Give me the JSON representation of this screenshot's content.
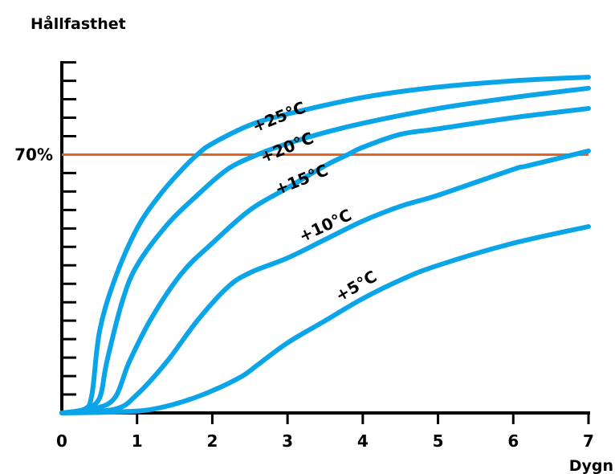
{
  "chart_data": {
    "type": "line",
    "title": "",
    "ylabel": "Hållfasthet",
    "xlabel": "Dygn",
    "x_ticks": [
      "0",
      "1",
      "2",
      "3",
      "4",
      "5",
      "6",
      "7"
    ],
    "xlim": [
      0,
      7
    ],
    "ylim": [
      0,
      100
    ],
    "grid": false,
    "reference_line": {
      "label": "70%",
      "y": 70,
      "color": "#e8641e"
    },
    "series_color": "#0aa5e8",
    "series": [
      {
        "name": "+25°C",
        "x": [
          0,
          0.3,
          0.4,
          0.5,
          0.7,
          1.0,
          1.3,
          1.6,
          1.8,
          2.0,
          2.5,
          3.0,
          4.0,
          5.0,
          6.0,
          7.0
        ],
        "y": [
          0,
          1,
          5,
          22,
          36,
          50,
          59,
          66,
          70,
          73,
          78,
          81,
          85.5,
          88.3,
          90,
          91
        ]
      },
      {
        "name": "+20°C",
        "x": [
          0,
          0.3,
          0.5,
          0.6,
          0.8,
          1.0,
          1.4,
          1.8,
          2.2,
          2.6,
          3.0,
          3.5,
          4.0,
          5.0,
          6.0,
          7.0
        ],
        "y": [
          0,
          1,
          4,
          14,
          30,
          40,
          51,
          59,
          66,
          70,
          73,
          76,
          78.5,
          82.5,
          85.5,
          88
        ]
      },
      {
        "name": "+15°C",
        "x": [
          0,
          0.4,
          0.7,
          0.9,
          1.2,
          1.6,
          2.0,
          2.5,
          3.0,
          3.5,
          3.8,
          4.0,
          4.5,
          5.0,
          6.0,
          7.0
        ],
        "y": [
          0,
          1,
          4,
          14,
          26,
          38,
          46,
          55,
          61,
          67,
          70,
          72,
          75.5,
          77,
          80,
          82.5
        ]
      },
      {
        "name": "+10°C",
        "x": [
          0,
          0.7,
          1.0,
          1.4,
          1.8,
          2.2,
          2.5,
          3.0,
          3.5,
          4.0,
          4.5,
          5.0,
          6.0,
          6.2,
          7.0
        ],
        "y": [
          0,
          1,
          5,
          14,
          25,
          34,
          38,
          42,
          47,
          52,
          56,
          59,
          66,
          67,
          71
        ]
      },
      {
        "name": "+5°C",
        "x": [
          0,
          0.8,
          1.2,
          1.6,
          2.0,
          2.4,
          2.6,
          3.0,
          3.5,
          4.0,
          4.5,
          5.0,
          6.0,
          7.0
        ],
        "y": [
          0,
          0.3,
          1,
          3,
          6,
          10,
          13,
          19,
          25,
          31,
          36,
          40,
          46,
          50.5
        ]
      }
    ],
    "series_labels": [
      {
        "text": "+25°C"
      },
      {
        "text": "+20°C"
      },
      {
        "text": "+15°C"
      },
      {
        "text": "+10°C"
      },
      {
        "text": "+5°C"
      }
    ]
  }
}
